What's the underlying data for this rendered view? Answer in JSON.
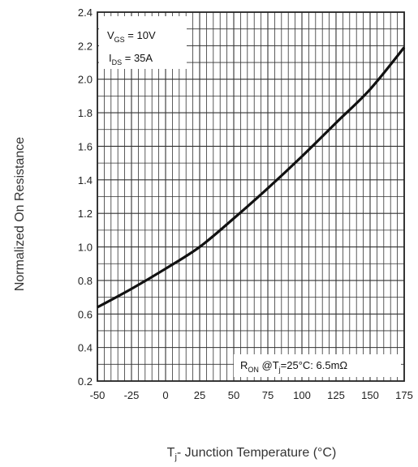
{
  "chart_data": {
    "type": "line",
    "title": "",
    "xlabel": "Tj - Junction Temperature (°C)",
    "xlabel_main": "T",
    "xlabel_sub": "j",
    "xlabel_rest": "- Junction Temperature (°C)",
    "ylabel": "Normalized On Resistance",
    "xlim": [
      -50,
      175
    ],
    "ylim": [
      0.2,
      2.4
    ],
    "x_ticks": [
      "-50",
      "-25",
      "0",
      "25",
      "50",
      "75",
      "100",
      "125",
      "150",
      "175"
    ],
    "y_ticks": [
      "0.2",
      "0.4",
      "0.6",
      "0.8",
      "1.0",
      "1.2",
      "1.4",
      "1.6",
      "1.8",
      "2.0",
      "2.2",
      "2.4"
    ],
    "grid": true,
    "series": [
      {
        "x": [
          -50,
          -25,
          0,
          25,
          50,
          75,
          100,
          125,
          150,
          175
        ],
        "y": [
          0.64,
          0.75,
          0.87,
          1.0,
          1.17,
          1.35,
          1.54,
          1.74,
          1.94,
          2.19
        ]
      }
    ],
    "annotations": {
      "vgs": {
        "main": "V",
        "sub": "GS",
        "rest": " = 10V"
      },
      "ids": {
        "main": "I",
        "sub": "DS",
        "rest": " = 35A"
      },
      "ron": {
        "main": "R",
        "sub": "ON",
        "mid": " @T",
        "sub2": "j",
        "rest": "=25°C: 6.5mΩ"
      }
    },
    "colors": {
      "grid": "#333333",
      "line": "#111111",
      "background": "#ffffff"
    }
  }
}
